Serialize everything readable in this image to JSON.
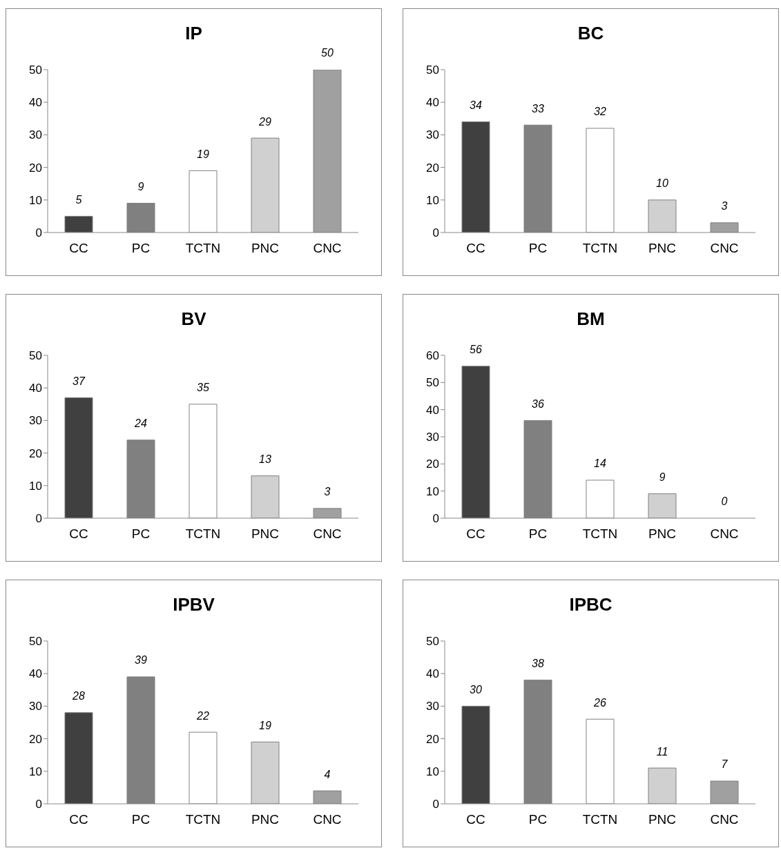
{
  "chart_data": [
    {
      "type": "bar",
      "title": "IP",
      "categories": [
        "CC",
        "PC",
        "TCTN",
        "PNC",
        "CNC"
      ],
      "values": [
        5,
        9,
        19,
        29,
        50
      ],
      "colors": [
        "#404040",
        "#808080",
        "#ffffff",
        "#d0d0d0",
        "#a0a0a0"
      ],
      "ylim": [
        0,
        50
      ],
      "yticks": [
        0,
        10,
        20,
        30,
        40,
        50
      ],
      "data_labels": true
    },
    {
      "type": "bar",
      "title": "BC",
      "categories": [
        "CC",
        "PC",
        "TCTN",
        "PNC",
        "CNC"
      ],
      "values": [
        34,
        33,
        32,
        10,
        3
      ],
      "colors": [
        "#404040",
        "#808080",
        "#ffffff",
        "#d0d0d0",
        "#a0a0a0"
      ],
      "ylim": [
        0,
        50
      ],
      "yticks": [
        0,
        10,
        20,
        30,
        40,
        50
      ],
      "data_labels": true
    },
    {
      "type": "bar",
      "title": "BV",
      "categories": [
        "CC",
        "PC",
        "TCTN",
        "PNC",
        "CNC"
      ],
      "values": [
        37,
        24,
        35,
        13,
        3
      ],
      "colors": [
        "#404040",
        "#808080",
        "#ffffff",
        "#d0d0d0",
        "#a0a0a0"
      ],
      "ylim": [
        0,
        50
      ],
      "yticks": [
        0,
        10,
        20,
        30,
        40,
        50
      ],
      "data_labels": true
    },
    {
      "type": "bar",
      "title": "BM",
      "categories": [
        "CC",
        "PC",
        "TCTN",
        "PNC",
        "CNC"
      ],
      "values": [
        56,
        36,
        14,
        9,
        0
      ],
      "colors": [
        "#404040",
        "#808080",
        "#ffffff",
        "#d0d0d0",
        "#a0a0a0"
      ],
      "ylim": [
        0,
        60
      ],
      "yticks": [
        0,
        10,
        20,
        30,
        40,
        50,
        60
      ],
      "data_labels": true
    },
    {
      "type": "bar",
      "title": "IPBV",
      "categories": [
        "CC",
        "PC",
        "TCTN",
        "PNC",
        "CNC"
      ],
      "values": [
        28,
        39,
        22,
        19,
        4
      ],
      "colors": [
        "#404040",
        "#808080",
        "#ffffff",
        "#d0d0d0",
        "#a0a0a0"
      ],
      "ylim": [
        0,
        50
      ],
      "yticks": [
        0,
        10,
        20,
        30,
        40,
        50
      ],
      "data_labels": true
    },
    {
      "type": "bar",
      "title": "IPBC",
      "categories": [
        "CC",
        "PC",
        "TCTN",
        "PNC",
        "CNC"
      ],
      "values": [
        30,
        38,
        26,
        11,
        7
      ],
      "colors": [
        "#404040",
        "#808080",
        "#ffffff",
        "#d0d0d0",
        "#a0a0a0"
      ],
      "ylim": [
        0,
        50
      ],
      "yticks": [
        0,
        10,
        20,
        30,
        40,
        50
      ],
      "data_labels": true
    }
  ]
}
